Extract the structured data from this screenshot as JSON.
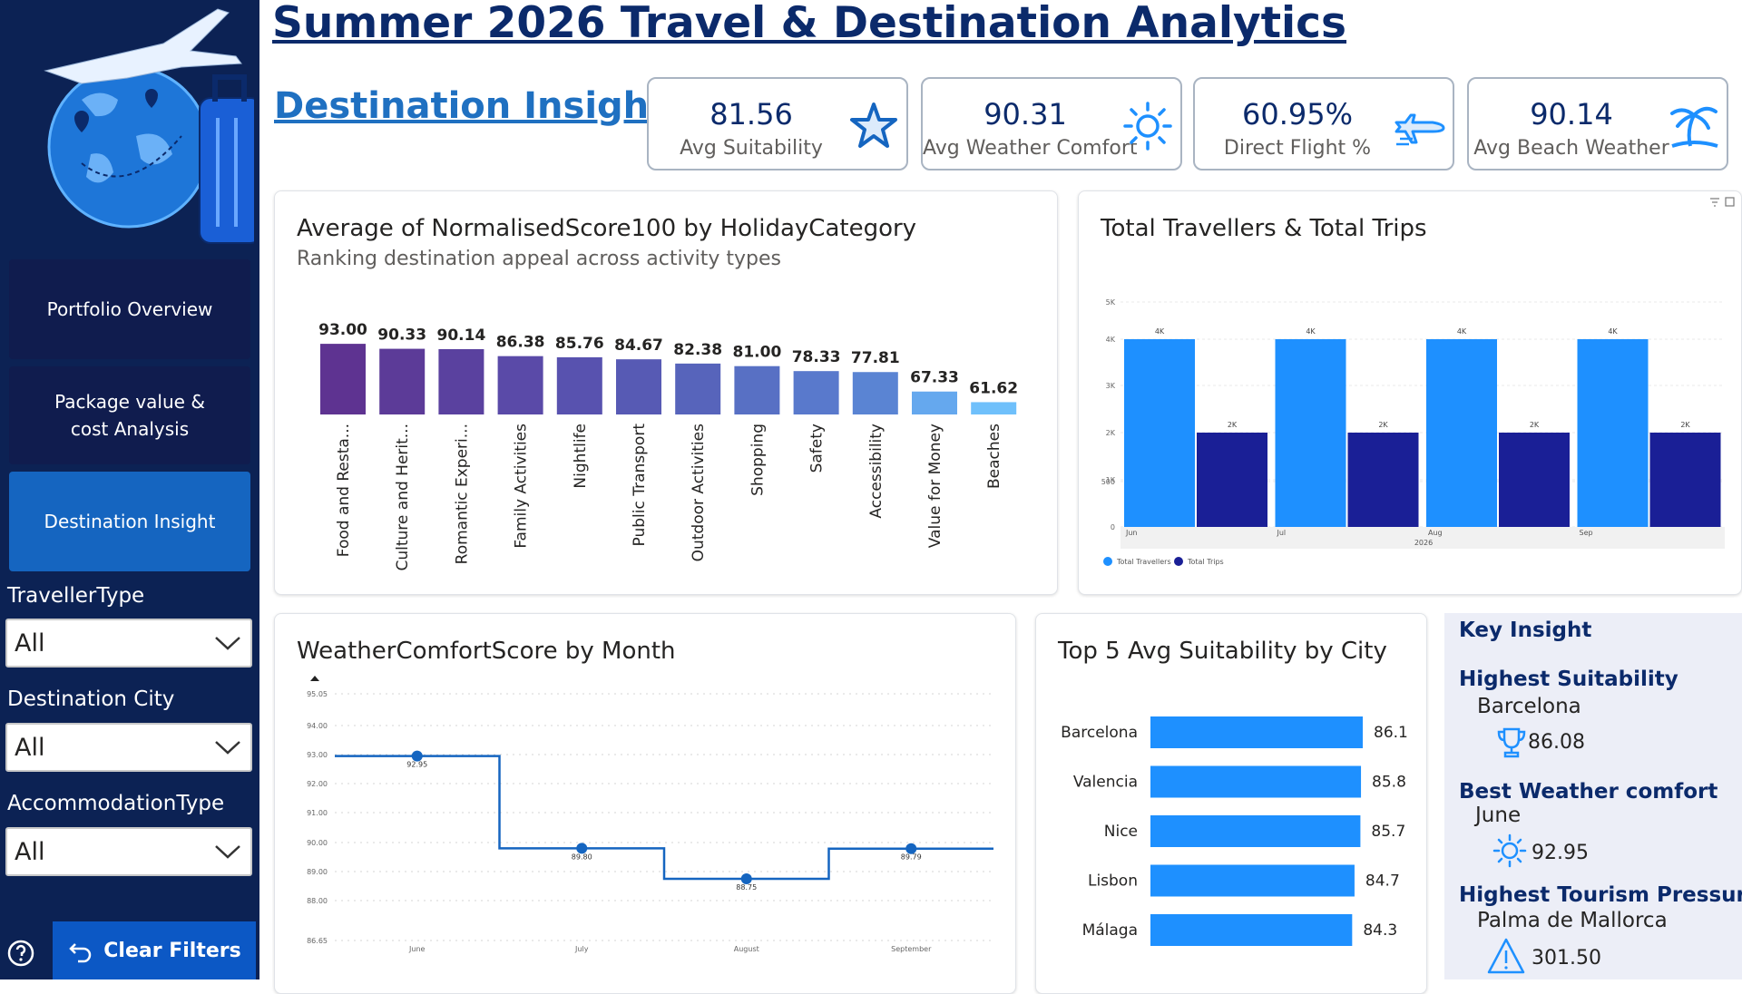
{
  "title": "Summer 2026 Travel & Destination Analytics",
  "page_title": "Destination Insight",
  "nav": [
    {
      "label": "Portfolio Overview",
      "active": false
    },
    {
      "label": "Package value & cost Analysis",
      "active": false
    },
    {
      "label": "Destination Insight",
      "active": true
    }
  ],
  "slicers": [
    {
      "label": "TravellerType",
      "value": "All"
    },
    {
      "label": "Destination City",
      "value": "All"
    },
    {
      "label": "AccommodationType",
      "value": "All"
    }
  ],
  "clear_filters": "Clear Filters",
  "kpis": [
    {
      "value": "81.56",
      "label": "Avg Suitability",
      "icon": "star-icon"
    },
    {
      "value": "90.31",
      "label": "Avg Weather Comfort",
      "icon": "sun-icon"
    },
    {
      "value": "60.95%",
      "label": "Direct Flight %",
      "icon": "airplane-icon"
    },
    {
      "value": "90.14",
      "label": "Avg Beach Weather",
      "icon": "palm-tree-icon"
    }
  ],
  "colors": {
    "sidebar": "#0c2254",
    "nav_active": "#1565c0",
    "accent": "#1e90ff",
    "dark_series": "#1a1f96",
    "title": "#0b2a6b"
  },
  "chart_data": [
    {
      "type": "bar",
      "title": "Average of NormalisedScore100 by HolidayCategory",
      "subtitle": "Ranking destination appeal across activity types",
      "categories": [
        "Food and Resta...",
        "Culture and Herit...",
        "Romantic Experi...",
        "Family Activities",
        "Nightlife",
        "Public Transport",
        "Outdoor Activities",
        "Shopping",
        "Safety",
        "Accessibility",
        "Value for Money",
        "Beaches"
      ],
      "values": [
        93.0,
        90.33,
        90.14,
        86.38,
        85.76,
        84.67,
        82.38,
        81.0,
        78.33,
        77.81,
        67.33,
        61.62
      ],
      "labels": [
        "93.00",
        "90.33",
        "90.14",
        "86.38",
        "85.76",
        "84.67",
        "82.38",
        "81.00",
        "78.33",
        "77.81",
        "67.33",
        "61.62"
      ],
      "colors": [
        "#5e3391",
        "#5c3b98",
        "#5a419f",
        "#5a4aa8",
        "#5852af",
        "#575ab4",
        "#5764bb",
        "#5870c4",
        "#5979cc",
        "#5a84d3",
        "#65a8ee",
        "#6fc0fb"
      ]
    },
    {
      "type": "bar",
      "title": "Total Travellers & Total Trips",
      "categories": [
        "Jun",
        "Jul",
        "Aug",
        "Sep"
      ],
      "x_group_label": "2026",
      "series": [
        {
          "name": "Total Travellers",
          "values": [
            4000,
            4000,
            4000,
            4000
          ],
          "labels": [
            "4K",
            "4K",
            "4K",
            "4K"
          ],
          "color": "#1e90ff"
        },
        {
          "name": "Total Trips",
          "values": [
            2000,
            2000,
            2000,
            2000
          ],
          "labels": [
            "2K",
            "2K",
            "2K",
            "2K"
          ],
          "color": "#1a1f96"
        }
      ],
      "y_ticks": [
        "0",
        "500",
        "1K",
        "2K",
        "3K",
        "4K",
        "5K"
      ],
      "legend": "bottom-left"
    },
    {
      "type": "line",
      "title": "WeatherComfortScore by Month",
      "categories": [
        "June",
        "July",
        "August",
        "September"
      ],
      "values": [
        92.95,
        89.8,
        88.75,
        89.79
      ],
      "labels": [
        "92.95",
        "89.80",
        "88.75",
        "89.79"
      ],
      "y_ticks": [
        "86.65",
        "88.00",
        "89.00",
        "90.00",
        "91.00",
        "92.00",
        "93.00",
        "94.00",
        "95.05"
      ],
      "ylim": [
        86.65,
        95.05
      ],
      "step": true,
      "color": "#1565c0"
    },
    {
      "type": "bar",
      "orientation": "horizontal",
      "title": "Top 5 Avg Suitability by City",
      "categories": [
        "Barcelona",
        "Valencia",
        "Nice",
        "Lisbon",
        "Málaga"
      ],
      "values": [
        86.1,
        85.8,
        85.7,
        84.7,
        84.3
      ],
      "labels": [
        "86.1",
        "85.8",
        "85.7",
        "84.7",
        "84.3"
      ],
      "color": "#1e90ff"
    }
  ],
  "insight": {
    "title": "Key Insight",
    "items": [
      {
        "heading": "Highest Suitability",
        "subject": "Barcelona",
        "value": "86.08",
        "icon": "trophy-icon"
      },
      {
        "heading": "Best Weather comfort",
        "subject": "June",
        "value": "92.95",
        "icon": "sun-icon"
      },
      {
        "heading": "Highest Tourism Pressure",
        "subject": "Palma de Mallorca",
        "value": "301.50",
        "icon": "warning-icon"
      }
    ]
  }
}
